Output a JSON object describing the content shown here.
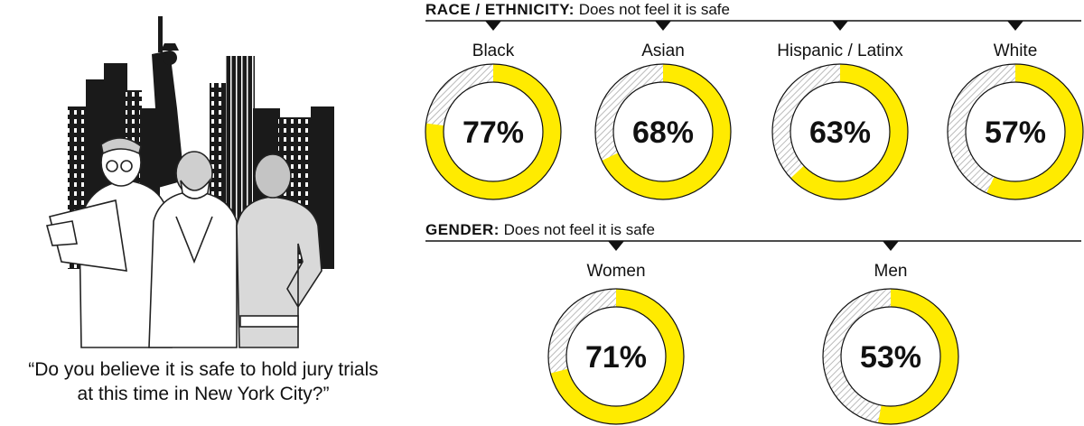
{
  "question": {
    "line1": "“Do you believe it is safe to hold jury trials",
    "line2": "at this time in New York City?”"
  },
  "colors": {
    "accent": "#FFEB00",
    "hatch": "#b3b3b3",
    "text": "#111111",
    "skyline": "#1a1a1a"
  },
  "chart_data": [
    {
      "type": "pie",
      "subtype": "donut",
      "title": "RACE / ETHNICITY:",
      "subtitle": "Does not feel it is safe",
      "unit": "%",
      "categories": [
        "Black",
        "Asian",
        "Hispanic / Latinx",
        "White"
      ],
      "values": [
        77,
        68,
        63,
        57
      ],
      "labels": [
        "77%",
        "68%",
        "63%",
        "57%"
      ]
    },
    {
      "type": "pie",
      "subtype": "donut",
      "title": "GENDER:",
      "subtitle": "Does not feel it is safe",
      "unit": "%",
      "categories": [
        "Women",
        "Men"
      ],
      "values": [
        71,
        53
      ],
      "labels": [
        "71%",
        "53%"
      ]
    }
  ]
}
